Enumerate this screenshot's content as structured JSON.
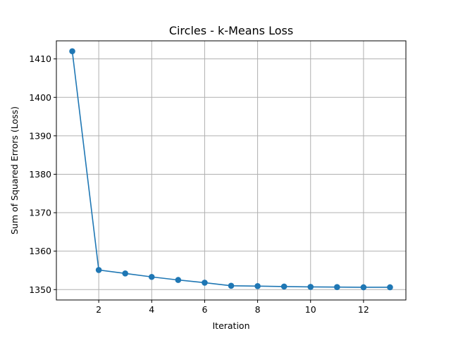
{
  "chart_data": {
    "type": "line",
    "title": "Circles - k-Means Loss",
    "xlabel": "Iteration",
    "ylabel": "Sum of Squared Errors (Loss)",
    "xlim": [
      0.4,
      13.6
    ],
    "ylim": [
      1347.3,
      1414.7
    ],
    "xticks": [
      2,
      4,
      6,
      8,
      10,
      12
    ],
    "yticks": [
      1350,
      1360,
      1370,
      1380,
      1390,
      1400,
      1410
    ],
    "grid": true,
    "series": [
      {
        "color": "#1f77b4",
        "marker": "circle",
        "x": [
          1,
          2,
          3,
          4,
          5,
          6,
          7,
          8,
          9,
          10,
          11,
          12,
          13
        ],
        "y": [
          1412.0,
          1355.1,
          1354.2,
          1353.3,
          1352.5,
          1351.8,
          1351.0,
          1350.9,
          1350.8,
          1350.7,
          1350.65,
          1350.6,
          1350.6
        ]
      }
    ]
  }
}
